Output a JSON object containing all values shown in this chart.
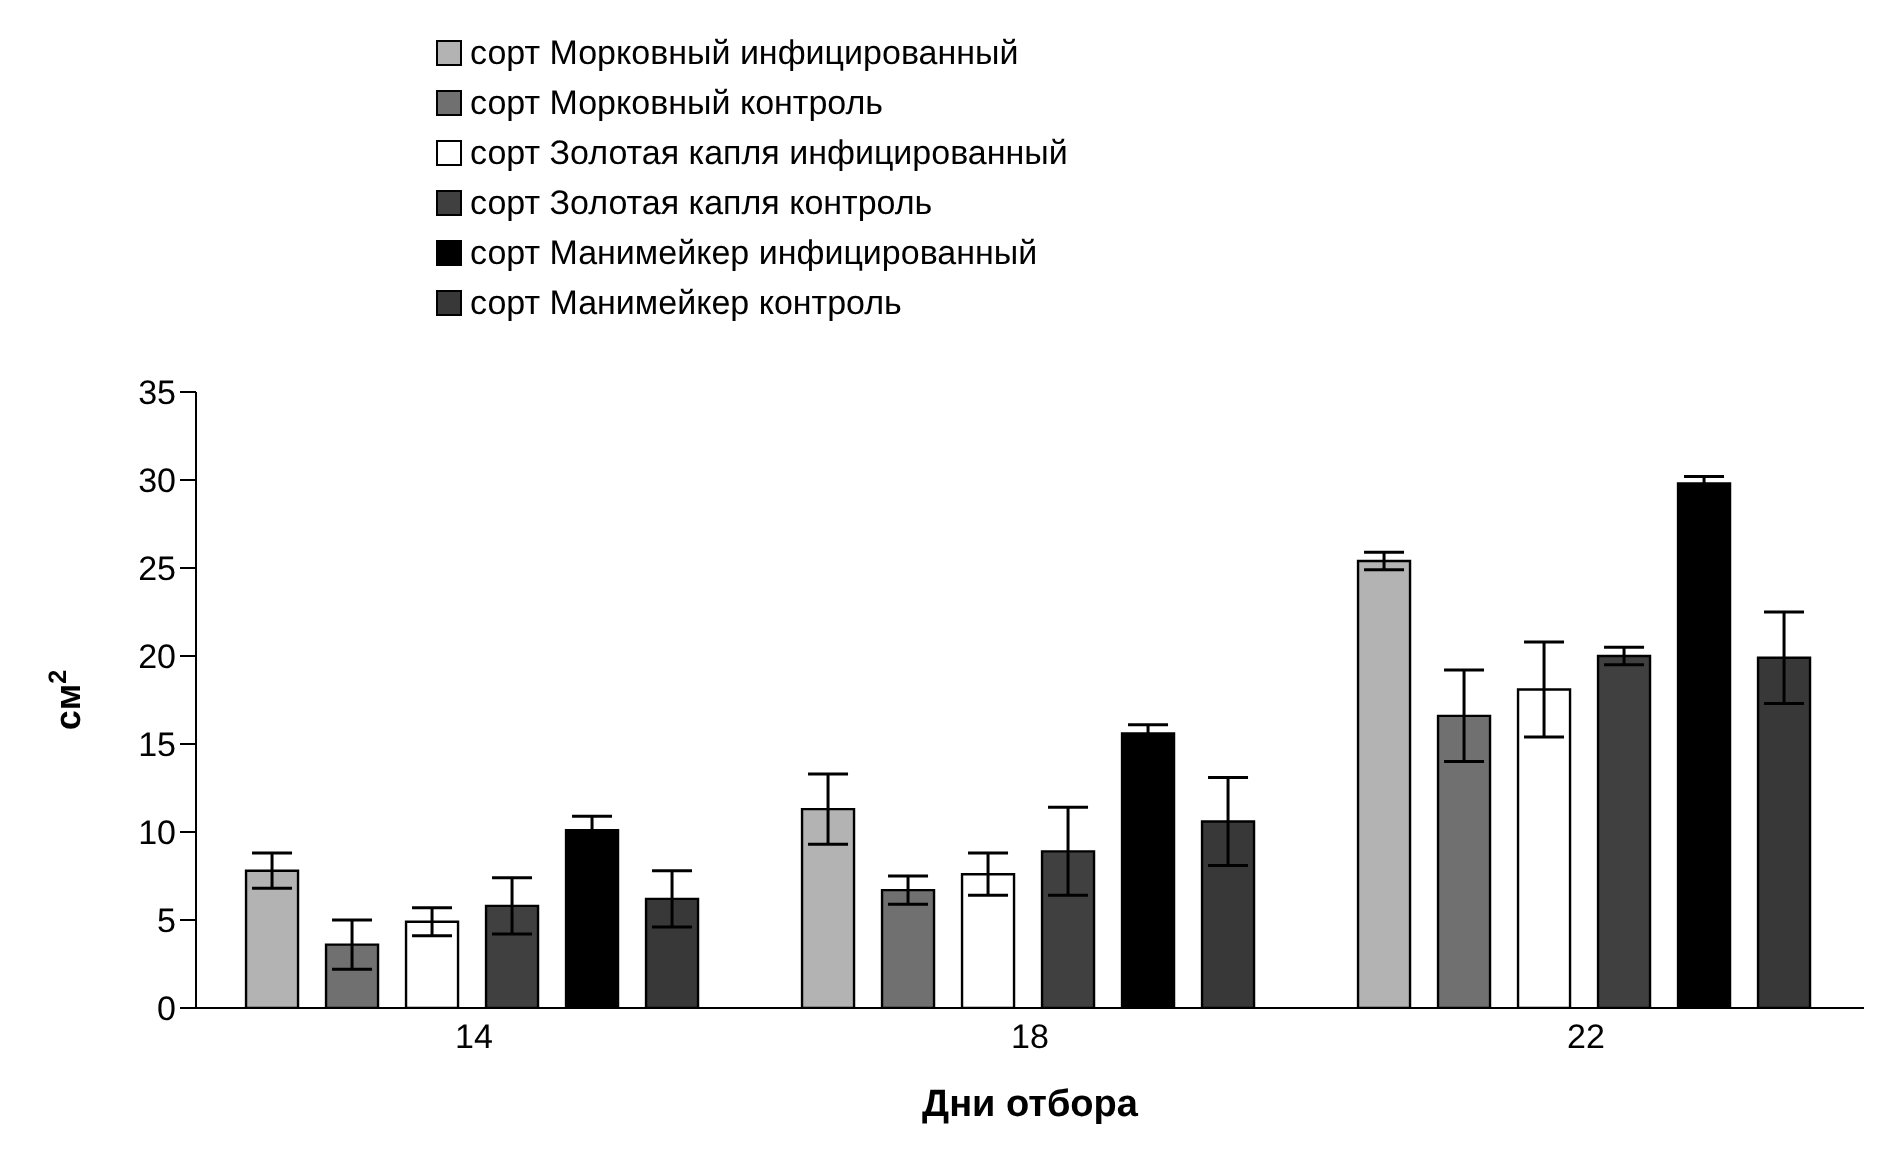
{
  "chart_data": {
    "type": "bar",
    "xlabel": "Дни отбора",
    "ylabel": "см$^{2}$",
    "categories": [
      "14",
      "18",
      "22"
    ],
    "ylim": [
      0,
      35
    ],
    "yticks": [
      0,
      5,
      10,
      15,
      20,
      25,
      30,
      35
    ],
    "grid": false,
    "legend": "top",
    "series": [
      {
        "name": "сорт Морковный инфицированный",
        "color": "#b3b3b3",
        "values": [
          7.8,
          11.3,
          25.4
        ],
        "errors": [
          1.0,
          2.0,
          0.5
        ]
      },
      {
        "name": "сорт Морковный контроль",
        "color": "#707070",
        "values": [
          3.6,
          6.7,
          16.6
        ],
        "errors": [
          1.4,
          0.8,
          2.6
        ]
      },
      {
        "name": "сорт Золотая капля инфицированный",
        "color": "#ffffff",
        "values": [
          4.9,
          7.6,
          18.1
        ],
        "errors": [
          0.8,
          1.2,
          2.7
        ]
      },
      {
        "name": "сорт Золотая капля контроль",
        "color": "#404040",
        "values": [
          5.8,
          8.9,
          20.0
        ],
        "errors": [
          1.6,
          2.5,
          0.5
        ]
      },
      {
        "name": "сорт Манимейкер инфицированный",
        "color": "#000000",
        "values": [
          10.1,
          15.6,
          29.8
        ],
        "errors": [
          0.8,
          0.5,
          0.4
        ]
      },
      {
        "name": "сорт Манимейкер контроль",
        "color": "#383838",
        "values": [
          6.2,
          10.6,
          19.9
        ],
        "errors": [
          1.6,
          2.5,
          2.6
        ]
      }
    ]
  }
}
